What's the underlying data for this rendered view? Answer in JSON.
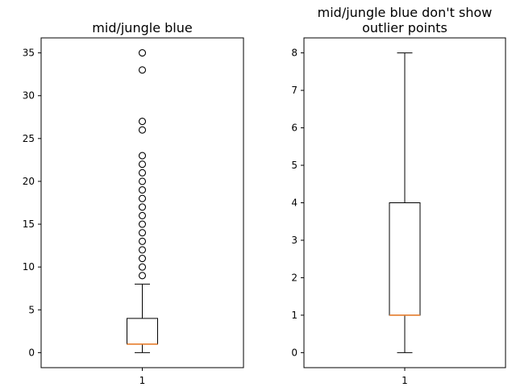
{
  "chart_data": [
    {
      "type": "boxplot",
      "title_lines": [
        "mid/jungle blue"
      ],
      "categories": [
        "1"
      ],
      "ylim": [
        -1.75,
        36.75
      ],
      "yticks": [
        0,
        5,
        10,
        15,
        20,
        25,
        30,
        35
      ],
      "grid": false,
      "box": {
        "whisker_low": 0,
        "q1": 1,
        "median": 1,
        "q3": 4,
        "whisker_high": 8
      },
      "outliers": [
        9,
        10,
        11,
        12,
        13,
        14,
        15,
        16,
        17,
        18,
        19,
        20,
        21,
        22,
        23,
        26,
        27,
        33,
        35
      ]
    },
    {
      "type": "boxplot",
      "title_lines": [
        "mid/jungle blue don't show",
        "outlier points"
      ],
      "categories": [
        "1"
      ],
      "ylim": [
        -0.4,
        8.4
      ],
      "yticks": [
        0,
        1,
        2,
        3,
        4,
        5,
        6,
        7,
        8
      ],
      "grid": false,
      "box": {
        "whisker_low": 0,
        "q1": 1,
        "median": 1,
        "q3": 4,
        "whisker_high": 8
      },
      "outliers": []
    }
  ],
  "colors": {
    "median": "#e67e2e",
    "frame": "#000000"
  }
}
